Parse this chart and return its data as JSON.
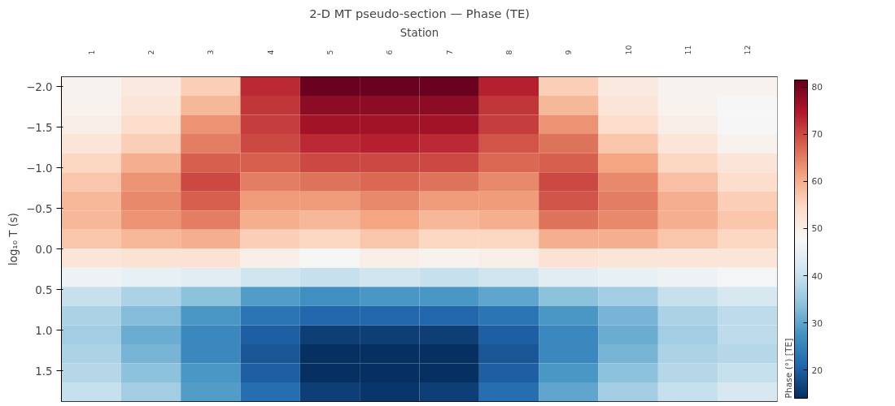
{
  "chart_data": {
    "type": "heatmap",
    "title": "2-D MT pseudo-section — Phase (TE)",
    "xlabel": "Station",
    "ylabel": "log₁₀ T (s)",
    "clabel": "Phase (°) [TE]",
    "categories": [
      "1",
      "2",
      "3",
      "4",
      "5",
      "6",
      "7",
      "8",
      "9",
      "10",
      "11",
      "12"
    ],
    "ylim": [
      1.88,
      -2.12
    ],
    "yticks": [
      {
        "value": -2.0,
        "label": "−2.0"
      },
      {
        "value": -1.5,
        "label": "−1.5"
      },
      {
        "value": -1.0,
        "label": "−1.0"
      },
      {
        "value": -0.5,
        "label": "−0.5"
      },
      {
        "value": 0.0,
        "label": "0.0"
      },
      0.5,
      {
        "value": 1.0,
        "label": "1.0"
      },
      1.5
    ],
    "clim": [
      14,
      81.5
    ],
    "cticks": [
      20,
      30,
      40,
      50,
      60,
      70,
      80
    ],
    "cells": [
      [
        49,
        51,
        56,
        73,
        81,
        81,
        81,
        74,
        56,
        51,
        49,
        49
      ],
      [
        49,
        52,
        59,
        72,
        78,
        78,
        78,
        72,
        59,
        52,
        49,
        48
      ],
      [
        50,
        54,
        63,
        71,
        76,
        76,
        76,
        71,
        63,
        54,
        50,
        48
      ],
      [
        52,
        56,
        65,
        70,
        73,
        74,
        73,
        69,
        66,
        57,
        52,
        49
      ],
      [
        55,
        60,
        68,
        68,
        70,
        70,
        70,
        67,
        68,
        61,
        55,
        52
      ],
      [
        57,
        63,
        70,
        65,
        66,
        67,
        66,
        64,
        70,
        64,
        58,
        54
      ],
      [
        59,
        64,
        68,
        62,
        62,
        64,
        62,
        62,
        69,
        65,
        60,
        56
      ],
      [
        59,
        63,
        65,
        60,
        59,
        61,
        59,
        60,
        66,
        64,
        60,
        57
      ],
      [
        57,
        59,
        60,
        56,
        55,
        57,
        55,
        55,
        60,
        60,
        57,
        55
      ],
      [
        52,
        53,
        53,
        50,
        48,
        50,
        49,
        50,
        53,
        52,
        52,
        52
      ],
      [
        46,
        45,
        44,
        41,
        40,
        41,
        40,
        41,
        44,
        45,
        46,
        47
      ],
      [
        40,
        37,
        34,
        29,
        27,
        28,
        28,
        30,
        34,
        36,
        40,
        42
      ],
      [
        37,
        33,
        28,
        23,
        21,
        21,
        21,
        23,
        28,
        32,
        37,
        39
      ],
      [
        36,
        31,
        26,
        20,
        16,
        16,
        16,
        20,
        26,
        31,
        36,
        39
      ],
      [
        37,
        32,
        26,
        19,
        14,
        14,
        14,
        19,
        26,
        32,
        37,
        38
      ],
      [
        38,
        34,
        28,
        20,
        14,
        14,
        14,
        20,
        28,
        34,
        38,
        40
      ],
      [
        40,
        36,
        29,
        22,
        16,
        15,
        16,
        22,
        30,
        36,
        40,
        42
      ]
    ]
  }
}
